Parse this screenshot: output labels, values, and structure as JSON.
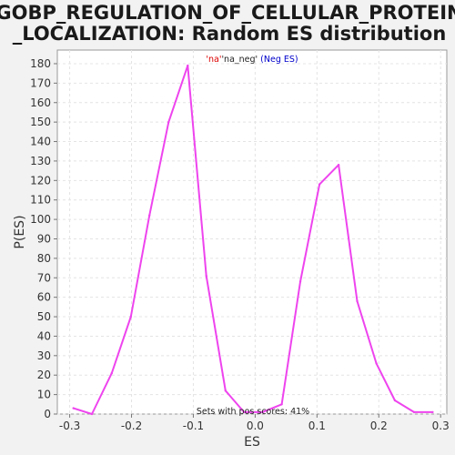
{
  "chart_data": {
    "type": "line",
    "title_line1": "GOBP_REGULATION_OF_CELLULAR_PROTEIN",
    "title_line2": "_LOCALIZATION: Random ES distribution",
    "xlabel": "ES",
    "ylabel": "P(ES)",
    "xlim": [
      -0.32,
      0.31
    ],
    "ylim": [
      0,
      187
    ],
    "xticks": [
      -0.3,
      -0.2,
      -0.1,
      0.0,
      0.1,
      0.2,
      0.3
    ],
    "xtick_labels": [
      "-0.3",
      "-0.2",
      "-0.1",
      "0.0",
      "0.1",
      "0.2",
      "0.3"
    ],
    "yticks": [
      0,
      10,
      20,
      30,
      40,
      50,
      60,
      70,
      80,
      90,
      100,
      110,
      120,
      130,
      140,
      150,
      160,
      170,
      180
    ],
    "grid": true,
    "line_color": "#ee44ee",
    "series": [
      {
        "x": [
          -0.294,
          -0.264,
          -0.232,
          -0.201,
          -0.171,
          -0.14,
          -0.109,
          -0.079,
          -0.048,
          -0.018,
          0.012,
          0.043,
          0.073,
          0.104,
          0.135,
          0.165,
          0.196,
          0.226,
          0.257,
          0.287
        ],
        "y": [
          3,
          0,
          21,
          50,
          102,
          150,
          179,
          71,
          12,
          1,
          1,
          5,
          68,
          118,
          128,
          58,
          26,
          7,
          1,
          1
        ]
      }
    ],
    "legend": {
      "part1": "'na'",
      "part1_color": "#dd0000",
      "part2": "'na_neg'",
      "part2_color": "#222222",
      "part3": " (Neg ES)",
      "part3_color": "#0000cc"
    },
    "footer_note": "Sets with pos scores: 41%"
  }
}
